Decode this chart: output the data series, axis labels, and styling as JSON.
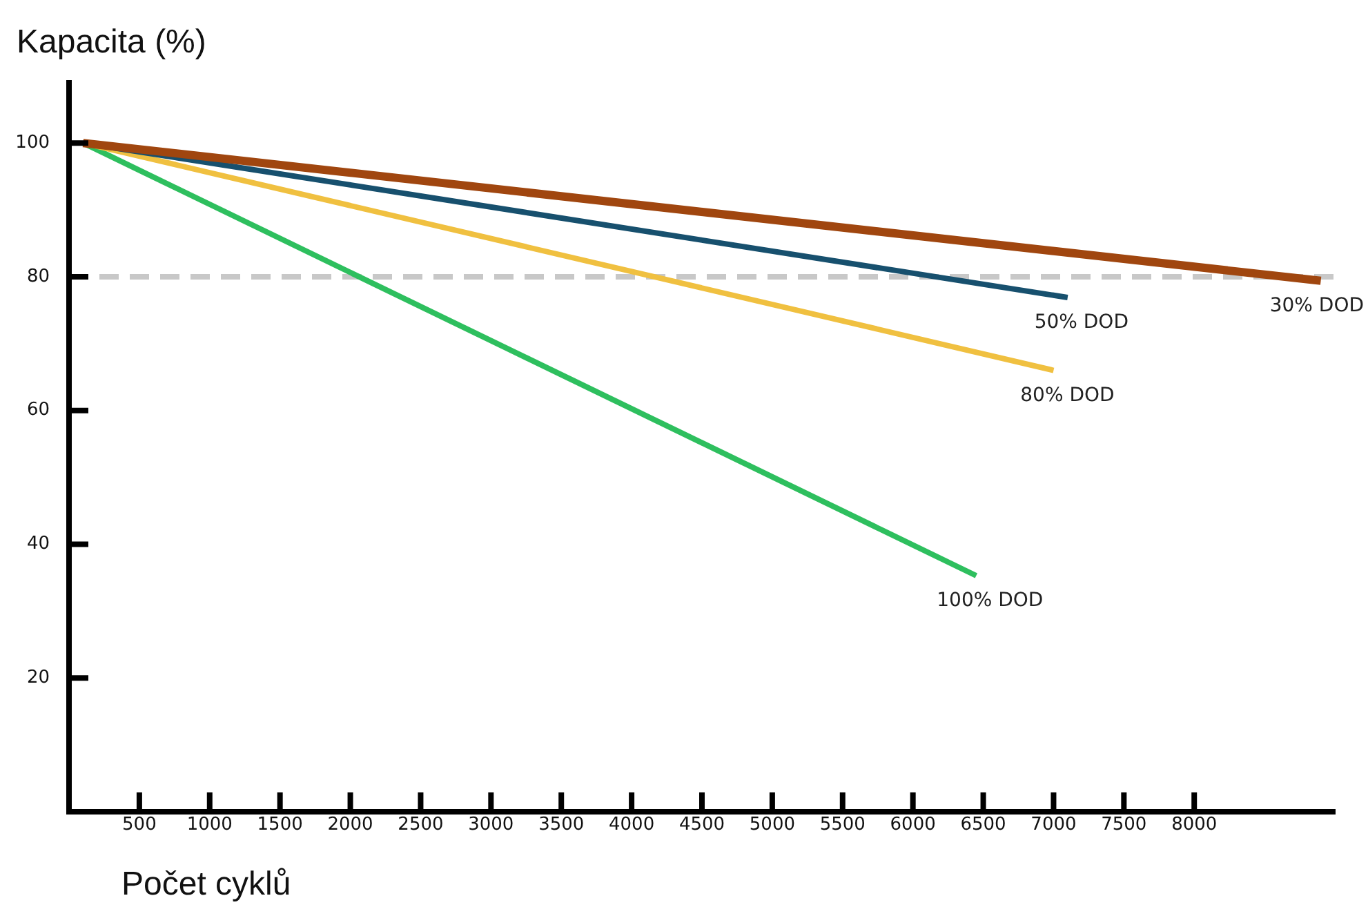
{
  "chart_data": {
    "type": "line",
    "xlabel": "Počet cyklů",
    "ylabel": "Kapacita (%)",
    "xlim": [
      0,
      9000
    ],
    "xticks": [
      500,
      1000,
      1500,
      2000,
      2500,
      3000,
      3500,
      4000,
      4500,
      5000,
      5500,
      6000,
      6500,
      7000,
      7500,
      8000
    ],
    "ylim": [
      0,
      109
    ],
    "yticks": [
      20,
      40,
      60,
      80,
      100
    ],
    "series": [
      {
        "name": "30% DOD",
        "color": "#a0460f",
        "x": [
          100,
          8900
        ],
        "values": [
          100,
          79.4
        ]
      },
      {
        "name": "50% DOD",
        "color": "#17506e",
        "x": [
          100,
          7100
        ],
        "values": [
          100,
          76.9
        ]
      },
      {
        "name": "80% DOD",
        "color": "#f0c040",
        "x": [
          100,
          7000
        ],
        "values": [
          100,
          66
        ]
      },
      {
        "name": "100% DOD",
        "color": "#2ebf5e",
        "x": [
          100,
          6450
        ],
        "values": [
          100,
          35.3
        ]
      }
    ],
    "ref_lines": [
      {
        "axis": "y",
        "value": 80,
        "color": "#c8c8c8",
        "line_style": "dashed"
      }
    ],
    "grid": false,
    "legend": false,
    "marker": "none",
    "line_style": "solid"
  }
}
